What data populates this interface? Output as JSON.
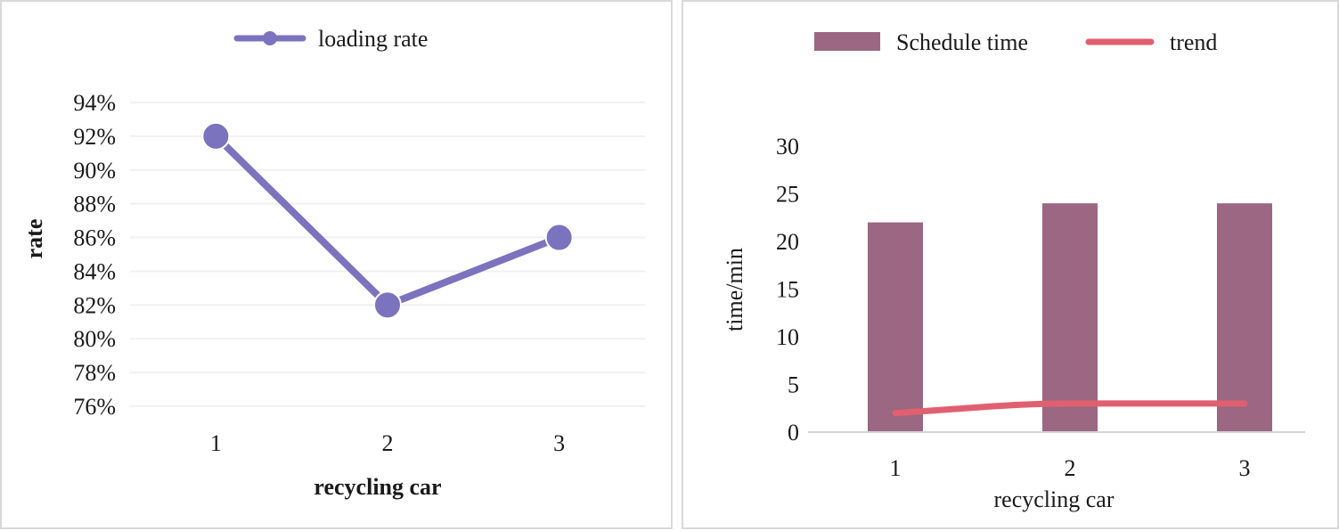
{
  "chart_data": [
    {
      "type": "line",
      "title": "",
      "xlabel": "recycling car",
      "ylabel": "rate",
      "categories": [
        "1",
        "2",
        "3"
      ],
      "series": [
        {
          "name": "loading rate",
          "values": [
            92,
            82,
            86
          ],
          "color": "#7b73bd"
        }
      ],
      "y_unit": "%",
      "ylim": [
        76,
        94
      ],
      "y_ticks": [
        94,
        92,
        90,
        88,
        86,
        84,
        82,
        80,
        78,
        76
      ],
      "y_tick_labels": [
        "94%",
        "92%",
        "90%",
        "88%",
        "86%",
        "84%",
        "82%",
        "80%",
        "78%",
        "76%"
      ],
      "grid": true,
      "legend_position": "top-center"
    },
    {
      "type": "bar",
      "title": "",
      "xlabel": "recycling car",
      "ylabel": "time/min",
      "categories": [
        "1",
        "2",
        "3"
      ],
      "series": [
        {
          "name": "Schedule time",
          "type": "bar",
          "values": [
            22,
            24,
            24
          ],
          "color": "#9b6782"
        },
        {
          "name": "trend",
          "type": "line",
          "values": [
            2,
            3,
            3
          ],
          "color": "#e06070"
        }
      ],
      "ylim": [
        0,
        30
      ],
      "y_ticks": [
        30,
        25,
        20,
        15,
        10,
        5,
        0
      ],
      "y_tick_labels": [
        "30",
        "25",
        "20",
        "15",
        "10",
        "5",
        "0"
      ],
      "grid": false,
      "legend_position": "top-center"
    }
  ]
}
